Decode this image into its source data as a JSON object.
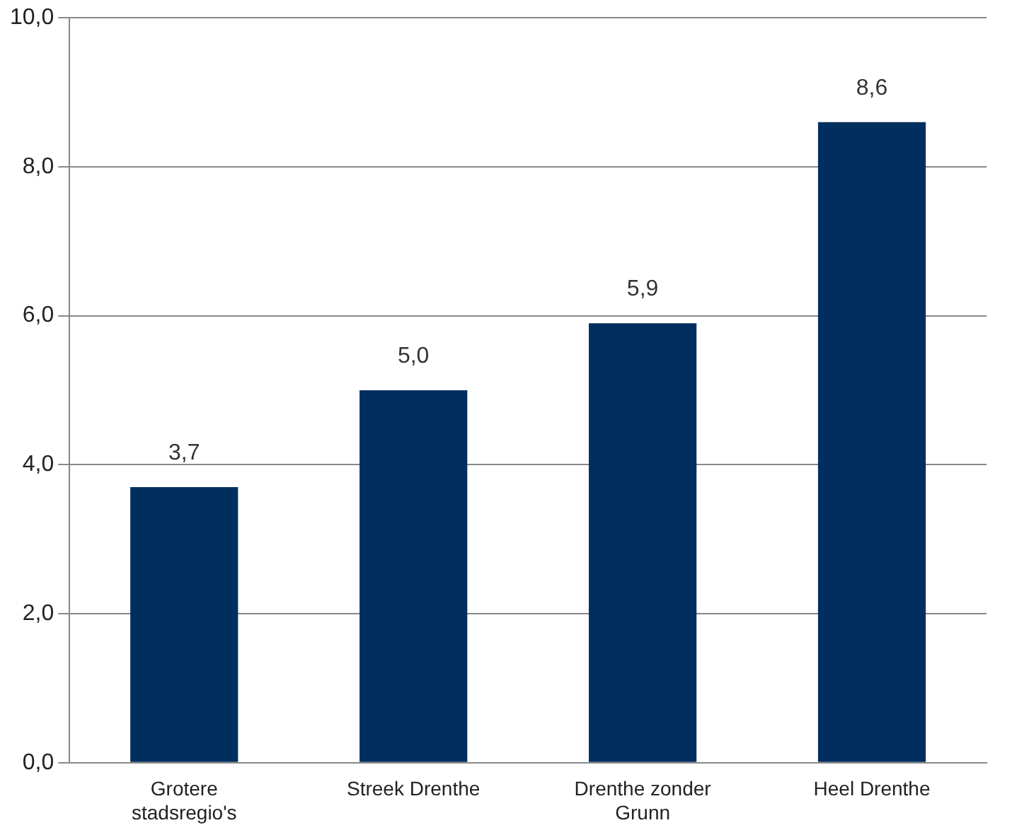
{
  "chart_data": {
    "type": "bar",
    "categories": [
      "Grotere stadsregio's",
      "Streek Drenthe",
      "Drenthe zonder Grunn",
      "Heel Drenthe"
    ],
    "values": [
      3.7,
      5.0,
      5.9,
      8.6
    ],
    "value_labels": [
      "3,7",
      "5,0",
      "5,9",
      "8,6"
    ],
    "color": "#002f5f",
    "ylim": [
      0,
      10
    ],
    "yticks": [
      {
        "value": 0,
        "label": "0,0"
      },
      {
        "value": 2,
        "label": "2,0"
      },
      {
        "value": 4,
        "label": "4,0"
      },
      {
        "value": 6,
        "label": "6,0"
      },
      {
        "value": 8,
        "label": "8,0"
      },
      {
        "value": 10,
        "label": "10,0"
      }
    ],
    "grid": "y",
    "legend": false
  }
}
